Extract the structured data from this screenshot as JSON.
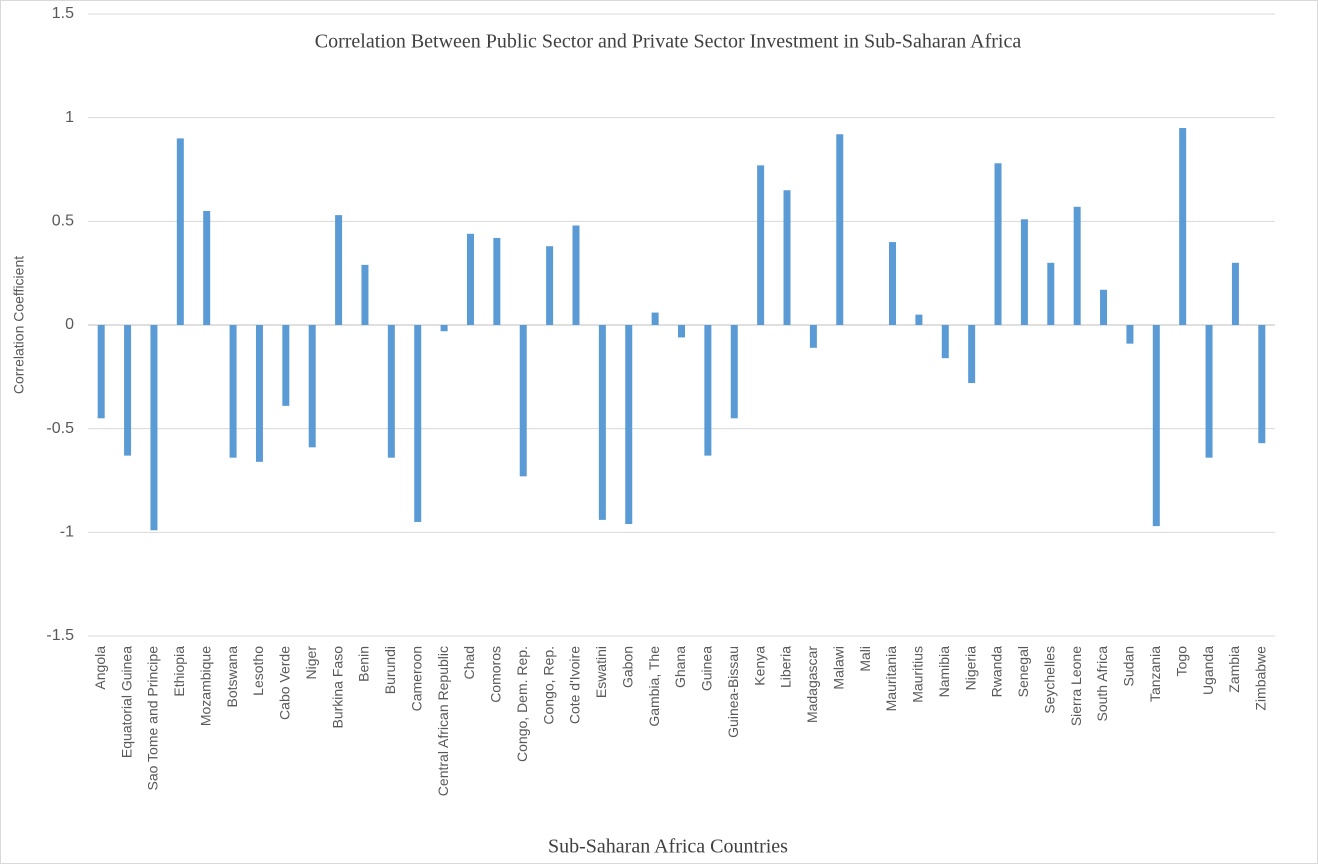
{
  "chart_data": {
    "type": "bar",
    "title": "Correlation Between Public Sector and Private Sector Investment in Sub-Saharan Africa",
    "x_label": "Sub-Saharan Africa Countries",
    "y_label": "Correlation Coefficient",
    "categories": [
      "Angola",
      "Equatorial Guinea",
      "Sao Tome and Principe",
      "Ethiopia",
      "Mozambique",
      "Botswana",
      "Lesotho",
      "Cabo Verde",
      "Niger",
      "Burkina Faso",
      "Benin",
      "Burundi",
      "Cameroon",
      "Central African Republic",
      "Chad",
      "Comoros",
      "Congo, Dem. Rep.",
      "Congo, Rep.",
      "Cote d'Ivoire",
      "Eswatini",
      "Gabon",
      "Gambia, The",
      "Ghana",
      "Guinea",
      "Guinea-Bissau",
      "Kenya",
      "Liberia",
      "Madagascar",
      "Malawi",
      "Mali",
      "Mauritania",
      "Mauritius",
      "Namibia",
      "Nigeria",
      "Rwanda",
      "Senegal",
      "Seychelles",
      "Sierra Leone",
      "South Africa",
      "Sudan",
      "Tanzania",
      "Togo",
      "Uganda",
      "Zambia",
      "Zimbabwe"
    ],
    "values": [
      -0.45,
      -0.63,
      -0.99,
      0.9,
      0.55,
      -0.64,
      -0.66,
      -0.39,
      -0.59,
      0.53,
      0.29,
      -0.64,
      -0.95,
      -0.03,
      0.44,
      0.42,
      -0.73,
      0.38,
      0.48,
      -0.94,
      -0.96,
      0.06,
      -0.06,
      -0.63,
      -0.45,
      0.77,
      0.65,
      -0.11,
      0.92,
      0,
      0.4,
      0.05,
      -0.16,
      -0.28,
      0.78,
      0.51,
      0.3,
      0.57,
      0.17,
      -0.09,
      -0.97,
      0.95,
      -0.64,
      0.3,
      -0.57
    ],
    "color": "#5b9bd5",
    "ylim": [
      -1.5,
      1.5
    ],
    "yticks": [
      -1.5,
      -1,
      -0.5,
      0,
      0.5,
      1,
      1.5
    ],
    "grid": true
  }
}
